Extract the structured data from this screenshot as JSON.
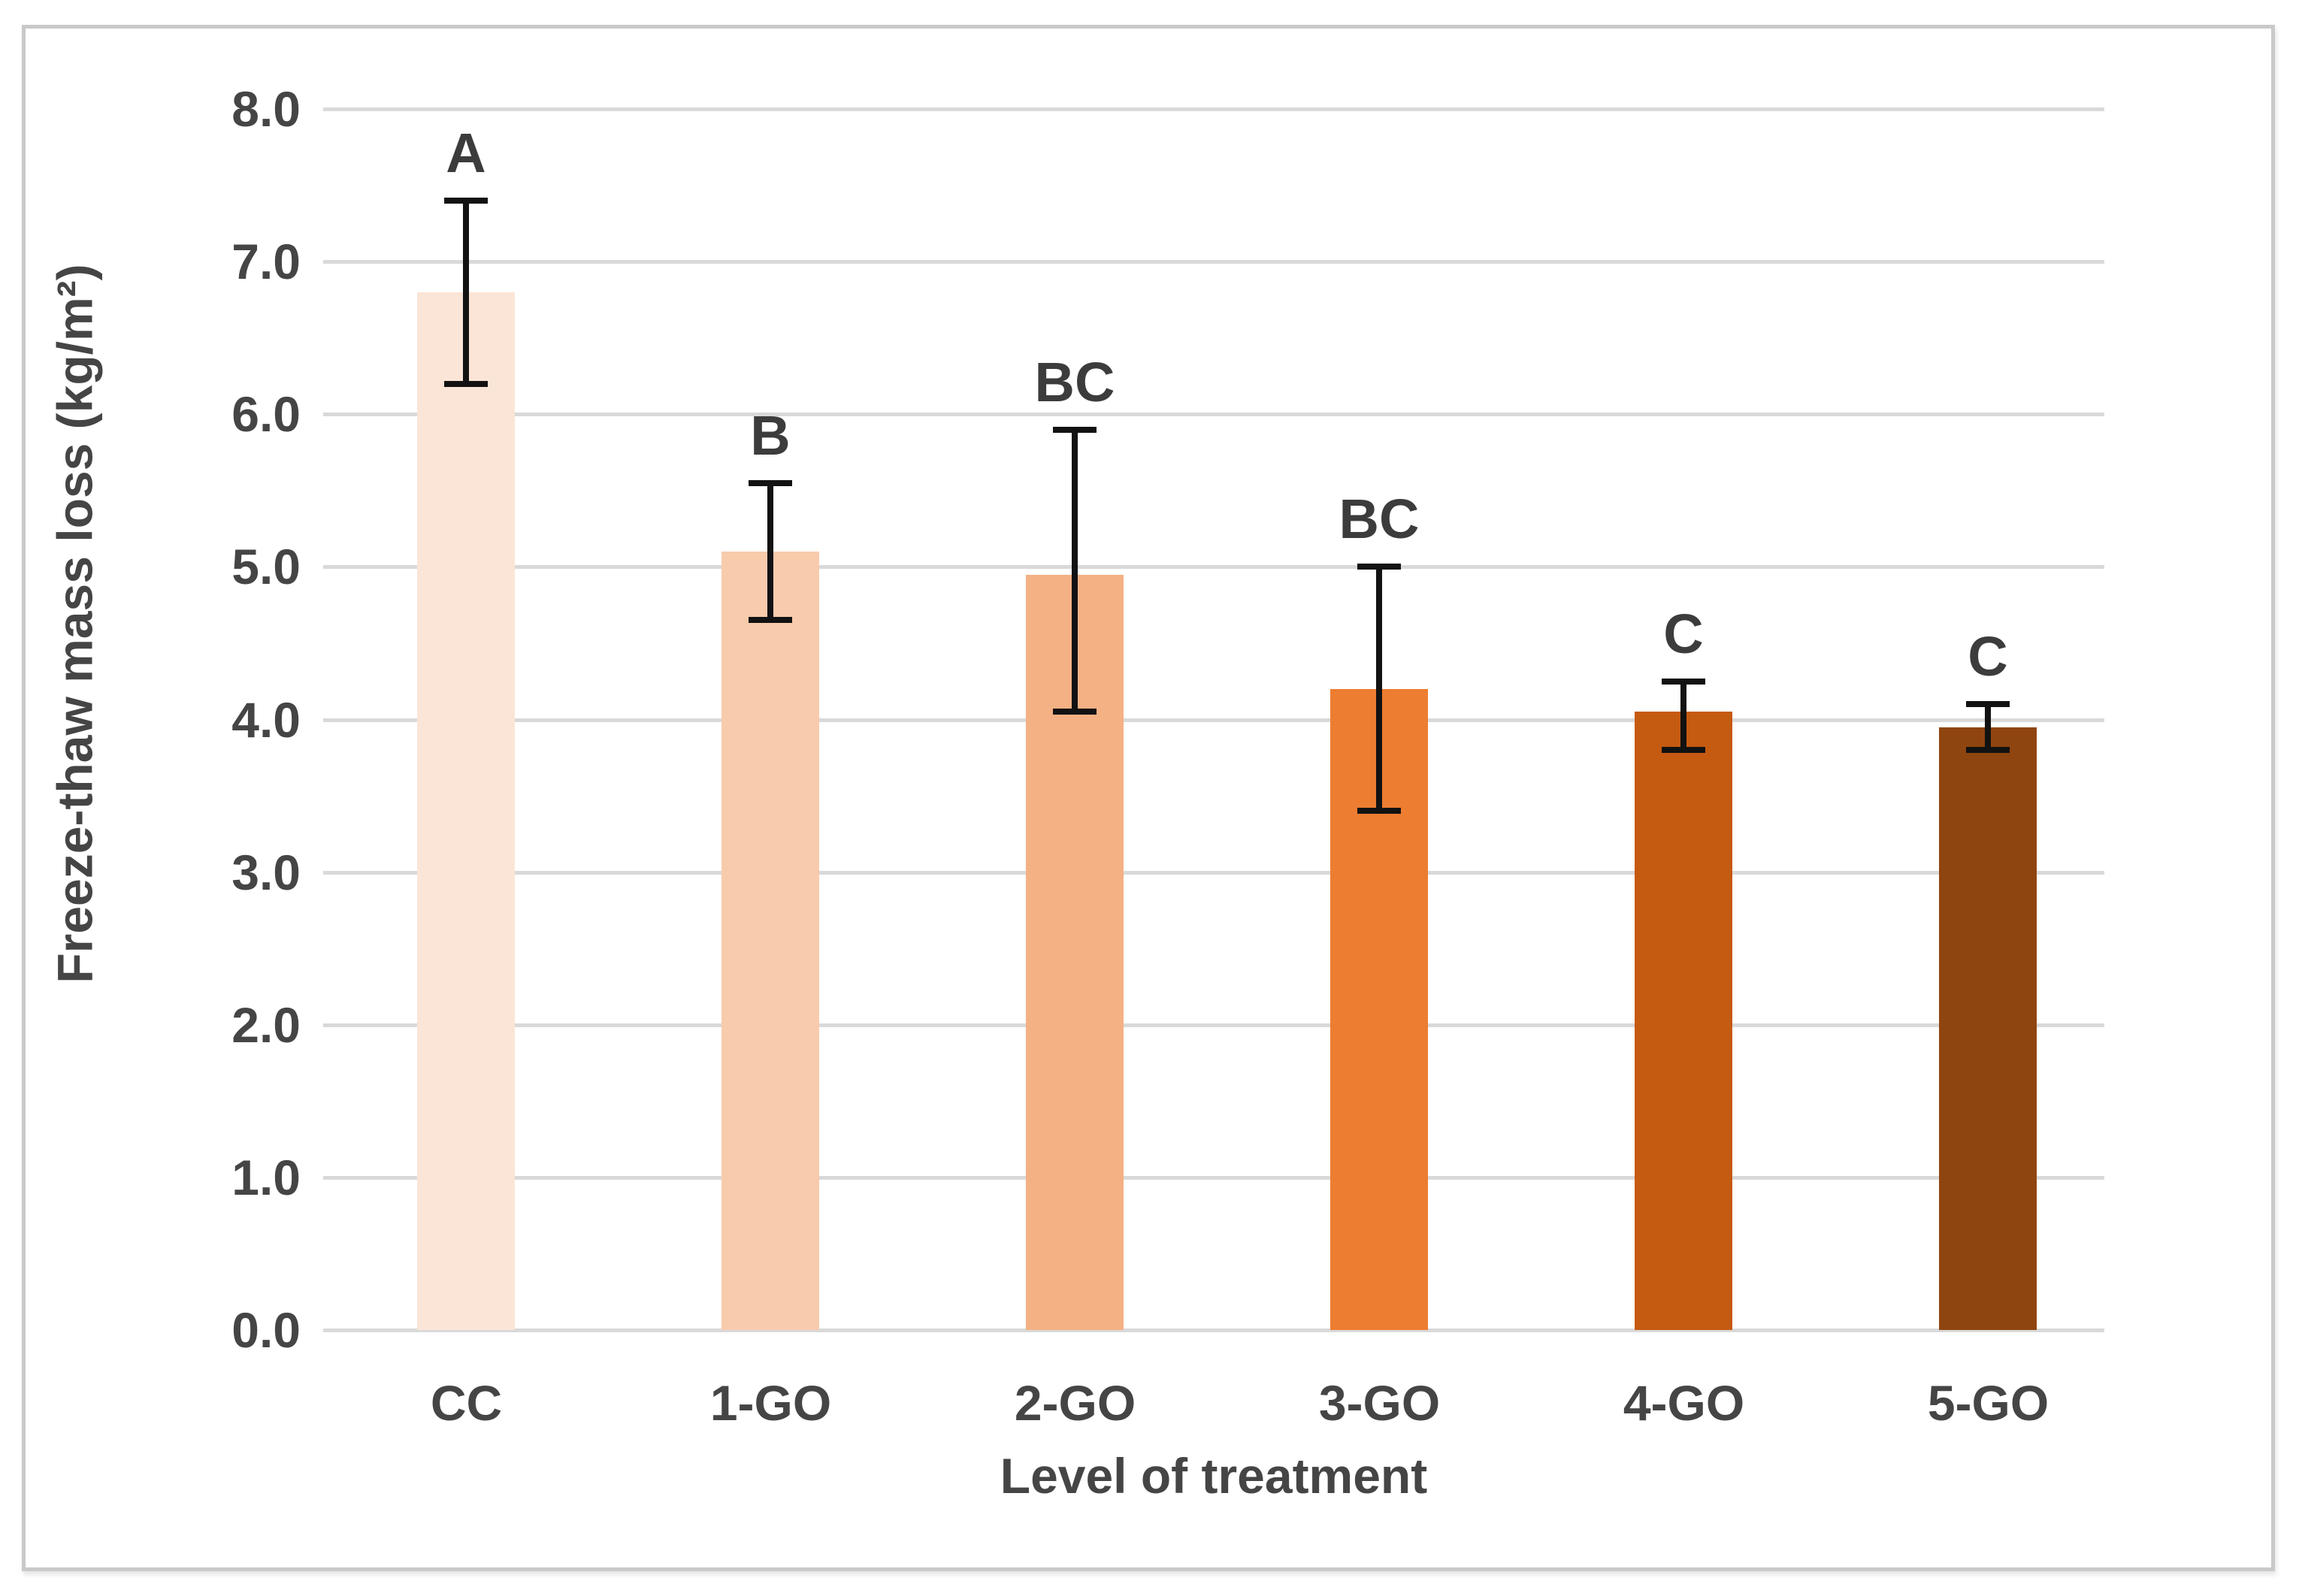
{
  "chart_data": {
    "type": "bar",
    "title": "",
    "xlabel": "Level of treatment",
    "ylabel": "Freeze-thaw mass loss (kg/m²)",
    "categories": [
      "CC",
      "1-GO",
      "2-GO",
      "3-GO",
      "4-GO",
      "5-GO"
    ],
    "values": [
      6.8,
      5.1,
      4.95,
      4.2,
      4.05,
      3.95
    ],
    "error_low": [
      6.2,
      4.65,
      4.05,
      3.4,
      3.8,
      3.8
    ],
    "error_high": [
      7.4,
      5.55,
      5.9,
      5.0,
      4.25,
      4.1
    ],
    "significance_letters": [
      "A",
      "B",
      "BC",
      "BC",
      "C",
      "C"
    ],
    "bar_colors": [
      "#FBE5D6",
      "#F8CBAD",
      "#F4B183",
      "#ED7D31",
      "#C55A11",
      "#8F450F"
    ],
    "ylim": [
      0.0,
      8.0
    ],
    "ytick_step": 1.0,
    "ytick_labels": [
      "8.0",
      "7.0",
      "6.0",
      "5.0",
      "4.0",
      "3.0",
      "2.0",
      "1.0",
      "0.0"
    ],
    "grid": true,
    "legend": false,
    "colors": {
      "gridline": "#D9D9D9",
      "tick_text": "#454545",
      "letter_text": "#3C3C3C",
      "axis_title_text": "#454545",
      "error_bar": "#121212",
      "frame_border": "#C9C9C9",
      "background": "#FFFFFF"
    }
  }
}
